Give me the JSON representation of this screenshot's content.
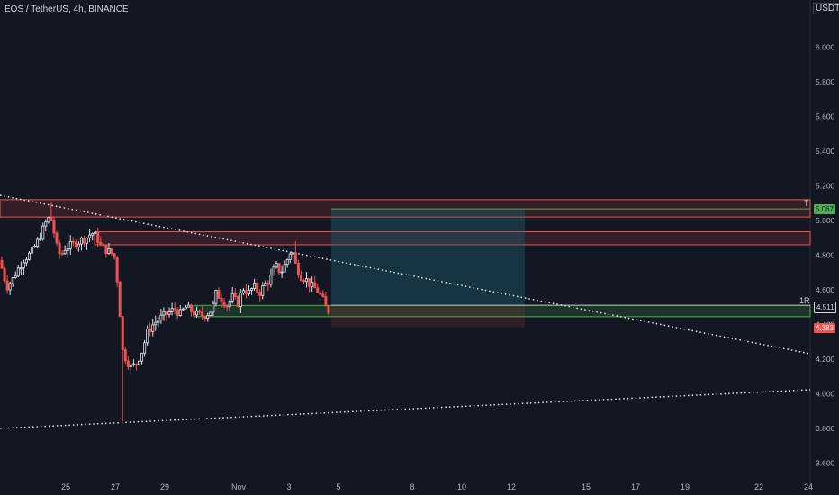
{
  "header": {
    "title": "EOS / TetherUS, 4h, BINANCE",
    "unit": "USDT"
  },
  "chart_data": {
    "type": "candlestick",
    "ylim": [
      3.5,
      6.25
    ],
    "y_ticks": [
      "6.000",
      "5.800",
      "5.600",
      "5.400",
      "5.200",
      "5.000",
      "4.800",
      "4.600",
      "4.400",
      "4.200",
      "4.000",
      "3.800",
      "3.600"
    ],
    "x_ticks": [
      "25",
      "27",
      "29",
      "Nov",
      "3",
      "5",
      "8",
      "10",
      "12",
      "15",
      "17",
      "19",
      "22",
      "24"
    ],
    "colors": {
      "up": "#e0e3eb",
      "down": "#ef5350",
      "trend": "#e0e3eb",
      "zone_red": "#ef5350",
      "zone_green": "#4caf50",
      "target_box": "#1e6a7a"
    },
    "markers": {
      "target": {
        "label": "T",
        "price": "5.067"
      },
      "entry": {
        "label": "1R",
        "price": "4.511"
      },
      "stop": {
        "price": "4.383"
      }
    }
  }
}
